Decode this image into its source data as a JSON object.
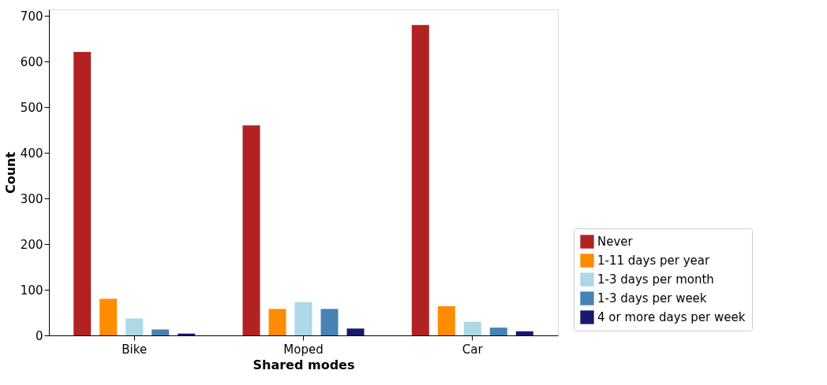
{
  "chart_data": {
    "type": "bar",
    "xlabel": "Shared modes",
    "ylabel": "Count",
    "categories": [
      "Bike",
      "Moped",
      "Car"
    ],
    "series": [
      {
        "name": "Never",
        "color": "#b22222",
        "values": [
          621,
          460,
          680
        ]
      },
      {
        "name": "1-11 days per year",
        "color": "#ff8c00",
        "values": [
          80,
          58,
          64
        ]
      },
      {
        "name": "1-3 days per month",
        "color": "#add8e6",
        "values": [
          37,
          73,
          30
        ]
      },
      {
        "name": "1-3 days per week",
        "color": "#4682b4",
        "values": [
          13,
          58,
          17
        ]
      },
      {
        "name": "4 or more days per week",
        "color": "#191970",
        "values": [
          4,
          15,
          9
        ]
      }
    ],
    "ylim": [
      0,
      714
    ],
    "yticks": [
      0,
      100,
      200,
      300,
      400,
      500,
      600,
      700
    ],
    "grid": false,
    "legend": "bottom right"
  }
}
